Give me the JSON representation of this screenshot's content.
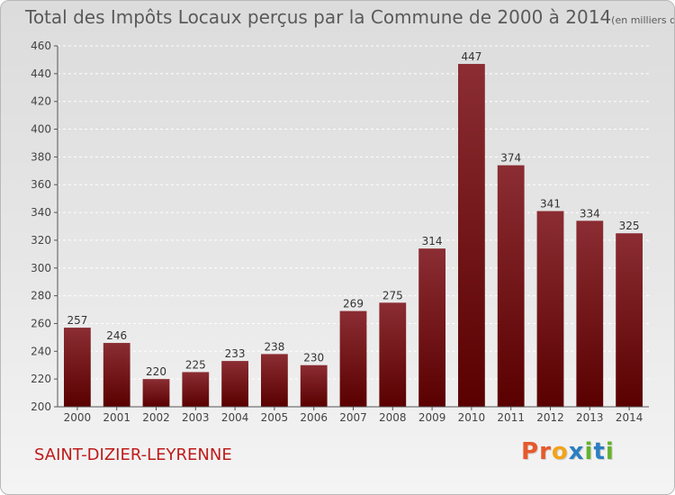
{
  "header": {
    "title": "Total des Impôts Locaux perçus par la Commune de 2000 à 2014",
    "subtitle": "(en milliers d'€)"
  },
  "footer": {
    "commune": "SAINT-DIZIER-LEYRENNE",
    "brand_letters": [
      "P",
      "r",
      "o",
      "x",
      "i",
      "t",
      "i"
    ],
    "brand_colors": [
      "#e8582a",
      "#e8582a",
      "#f2a31b",
      "#2c7fc1",
      "#64b32e",
      "#2c7fc1",
      "#64b32e"
    ]
  },
  "chart_data": {
    "type": "bar",
    "title": "Total des Impôts Locaux perçus par la Commune de 2000 à 2014",
    "ylabel": "",
    "xlabel": "",
    "categories": [
      "2000",
      "2001",
      "2002",
      "2003",
      "2004",
      "2005",
      "2006",
      "2007",
      "2008",
      "2009",
      "2010",
      "2011",
      "2012",
      "2013",
      "2014"
    ],
    "values": [
      257,
      246,
      220,
      225,
      233,
      238,
      230,
      269,
      275,
      314,
      447,
      374,
      341,
      334,
      325
    ],
    "ylim": [
      200,
      460
    ],
    "yticks": [
      200,
      220,
      240,
      260,
      280,
      300,
      320,
      340,
      360,
      380,
      400,
      420,
      440,
      460
    ],
    "grid": true,
    "bar_color_top": "#8b2d33",
    "bar_color_bottom": "#5a0000"
  }
}
